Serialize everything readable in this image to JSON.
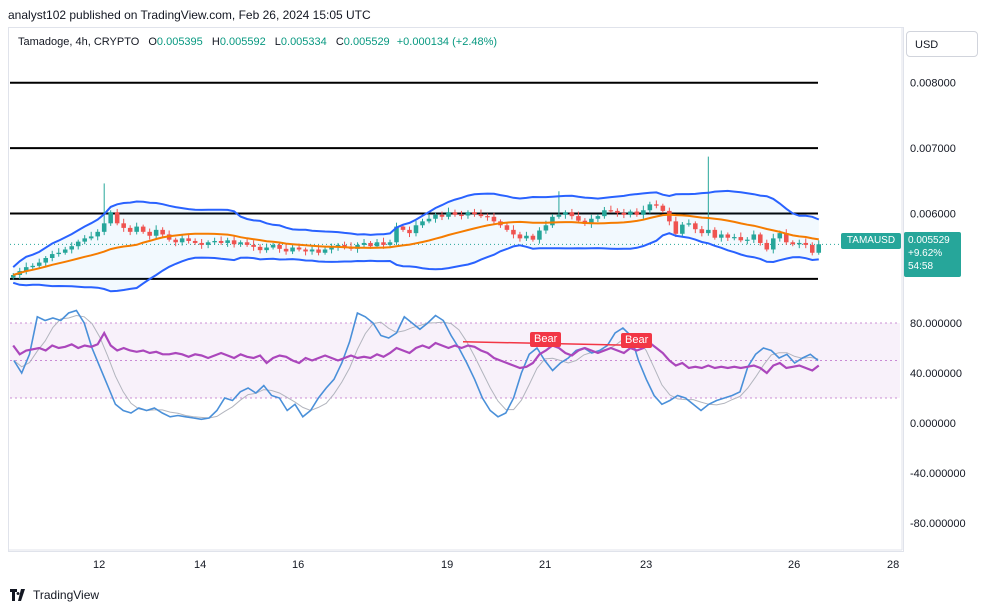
{
  "publisher": "analyst102 published on TradingView.com, Feb 26, 2024 15:05 UTC",
  "legend": {
    "symbol": "Tamadoge, 4h, CRYPTO",
    "open_label": "O",
    "open": "0.005395",
    "high_label": "H",
    "high": "0.005592",
    "low_label": "L",
    "low": "0.005334",
    "close_label": "C",
    "close": "0.005529",
    "change": "+0.000134 (+2.48%)"
  },
  "currency_button": "USD",
  "price_axis": [
    "0.008000",
    "0.007000",
    "0.006000"
  ],
  "rsi_axis": [
    "80.000000",
    "40.000000",
    "0.000000",
    "-40.000000",
    "-80.000000"
  ],
  "time_axis": [
    "12",
    "14",
    "16",
    "19",
    "21",
    "23",
    "26",
    "28"
  ],
  "price_tag": {
    "symbol": "TAMAUSD",
    "price": "0.005529",
    "change": "+9.62%",
    "countdown": "54:58"
  },
  "bear_labels": [
    "Bear",
    "Bear"
  ],
  "footer_brand": "TradingView",
  "colors": {
    "up": "#26a69a",
    "down": "#ef5350",
    "bb": "#2962ff",
    "ma": "#f57c00",
    "rsi": "#ab47bc",
    "stoch": "#4a90d9",
    "label_red": "#f23645"
  },
  "chart_data": [
    {
      "type": "candlestick",
      "title": "Tamadoge, 4h, CRYPTO",
      "ylim": [
        0.0048,
        0.0085
      ],
      "x_ticks": [
        "12",
        "14",
        "16",
        "19",
        "21",
        "23",
        "26",
        "28"
      ],
      "horizontal_levels": [
        0.008,
        0.007,
        0.006,
        0.005
      ],
      "series_close": [
        0.00506,
        0.00512,
        0.00518,
        0.0052,
        0.00525,
        0.00532,
        0.00538,
        0.0054,
        0.00545,
        0.0055,
        0.00557,
        0.00562,
        0.00565,
        0.00572,
        0.00585,
        0.00602,
        0.00585,
        0.00578,
        0.00572,
        0.0058,
        0.00572,
        0.00566,
        0.00575,
        0.00568,
        0.0056,
        0.00556,
        0.00562,
        0.00558,
        0.00555,
        0.00552,
        0.00556,
        0.00558,
        0.00555,
        0.00559,
        0.00553,
        0.00556,
        0.00552,
        0.00549,
        0.00544,
        0.00548,
        0.00552,
        0.00546,
        0.00542,
        0.00548,
        0.00545,
        0.00542,
        0.00545,
        0.0054,
        0.00545,
        0.00548,
        0.00552,
        0.00549,
        0.00546,
        0.00552,
        0.00555,
        0.0055,
        0.00556,
        0.00552,
        0.00556,
        0.0058,
        0.00575,
        0.0057,
        0.00582,
        0.00588,
        0.00592,
        0.00598,
        0.00595,
        0.00602,
        0.00598,
        0.00597,
        0.00602,
        0.00599,
        0.00596,
        0.00595,
        0.00588,
        0.00582,
        0.00575,
        0.00568,
        0.00562,
        0.00566,
        0.0056,
        0.00574,
        0.00582,
        0.00595,
        0.00598,
        0.00602,
        0.00596,
        0.00589,
        0.00584,
        0.00592,
        0.00596,
        0.00605,
        0.00604,
        0.00601,
        0.00598,
        0.00603,
        0.00598,
        0.00605,
        0.00614,
        0.00612,
        0.00604,
        0.00588,
        0.00569,
        0.00583,
        0.00585,
        0.00576,
        0.0057,
        0.00575,
        0.00563,
        0.00568,
        0.00563,
        0.00564,
        0.00559,
        0.0056,
        0.00568,
        0.00555,
        0.00545,
        0.00562,
        0.0057,
        0.00556,
        0.00553,
        0.00555,
        0.00552,
        0.0054,
        0.00553
      ],
      "upper_band_approx": 0.00605,
      "lower_band_approx": 0.0053
    },
    {
      "type": "line",
      "title": "RSI / Stochastic",
      "ylim": [
        -100,
        100
      ],
      "y_ticks": [
        80,
        40,
        0,
        -40,
        -80
      ],
      "band": [
        20,
        80
      ],
      "series": [
        {
          "values": [
            62,
            55,
            58,
            59,
            60,
            58,
            62,
            60,
            61,
            63,
            60,
            62,
            61,
            63,
            72,
            62,
            58,
            60,
            58,
            57,
            58,
            56,
            57,
            55,
            55,
            56,
            55,
            53,
            55,
            54,
            52,
            54,
            56,
            54,
            52,
            55,
            53,
            52,
            54,
            48,
            52,
            54,
            53,
            50,
            48,
            52,
            50,
            52,
            54,
            52,
            50,
            52,
            54,
            52,
            53,
            52,
            55,
            53,
            56,
            60,
            58,
            56,
            60,
            62,
            60,
            64,
            62,
            60,
            62,
            60,
            62,
            61,
            58,
            56,
            52,
            50,
            48,
            46,
            44,
            45,
            48,
            55,
            58,
            62,
            60,
            56,
            54,
            58,
            60,
            58,
            56,
            58,
            60,
            58,
            56,
            60,
            58,
            60,
            64,
            60,
            56,
            50,
            46,
            48,
            44,
            45,
            44,
            46,
            44,
            45,
            44,
            45,
            44,
            45,
            46,
            44,
            40,
            46,
            48,
            44,
            45,
            46,
            44,
            42,
            46
          ]
        },
        {
          "values": [
            50,
            40,
            55,
            85,
            82,
            84,
            82,
            88,
            90,
            80,
            60,
            45,
            30,
            15,
            10,
            8,
            12,
            10,
            12,
            8,
            5,
            6,
            5,
            4,
            3,
            4,
            10,
            20,
            18,
            25,
            28,
            24,
            30,
            22,
            20,
            10,
            15,
            5,
            10,
            20,
            28,
            35,
            48,
            65,
            88,
            85,
            80,
            70,
            68,
            72,
            85,
            80,
            75,
            80,
            86,
            82,
            70,
            60,
            48,
            35,
            20,
            10,
            5,
            8,
            20,
            40,
            55,
            60,
            50,
            42,
            48,
            52,
            58,
            60,
            56,
            58,
            62,
            72,
            76,
            70,
            50,
            35,
            22,
            15,
            18,
            22,
            20,
            15,
            10,
            15,
            18,
            20,
            22,
            25,
            45,
            55,
            60,
            58,
            52,
            55,
            48,
            52,
            55,
            50
          ]
        }
      ],
      "annotations": [
        "Bear",
        "Bear"
      ]
    }
  ]
}
